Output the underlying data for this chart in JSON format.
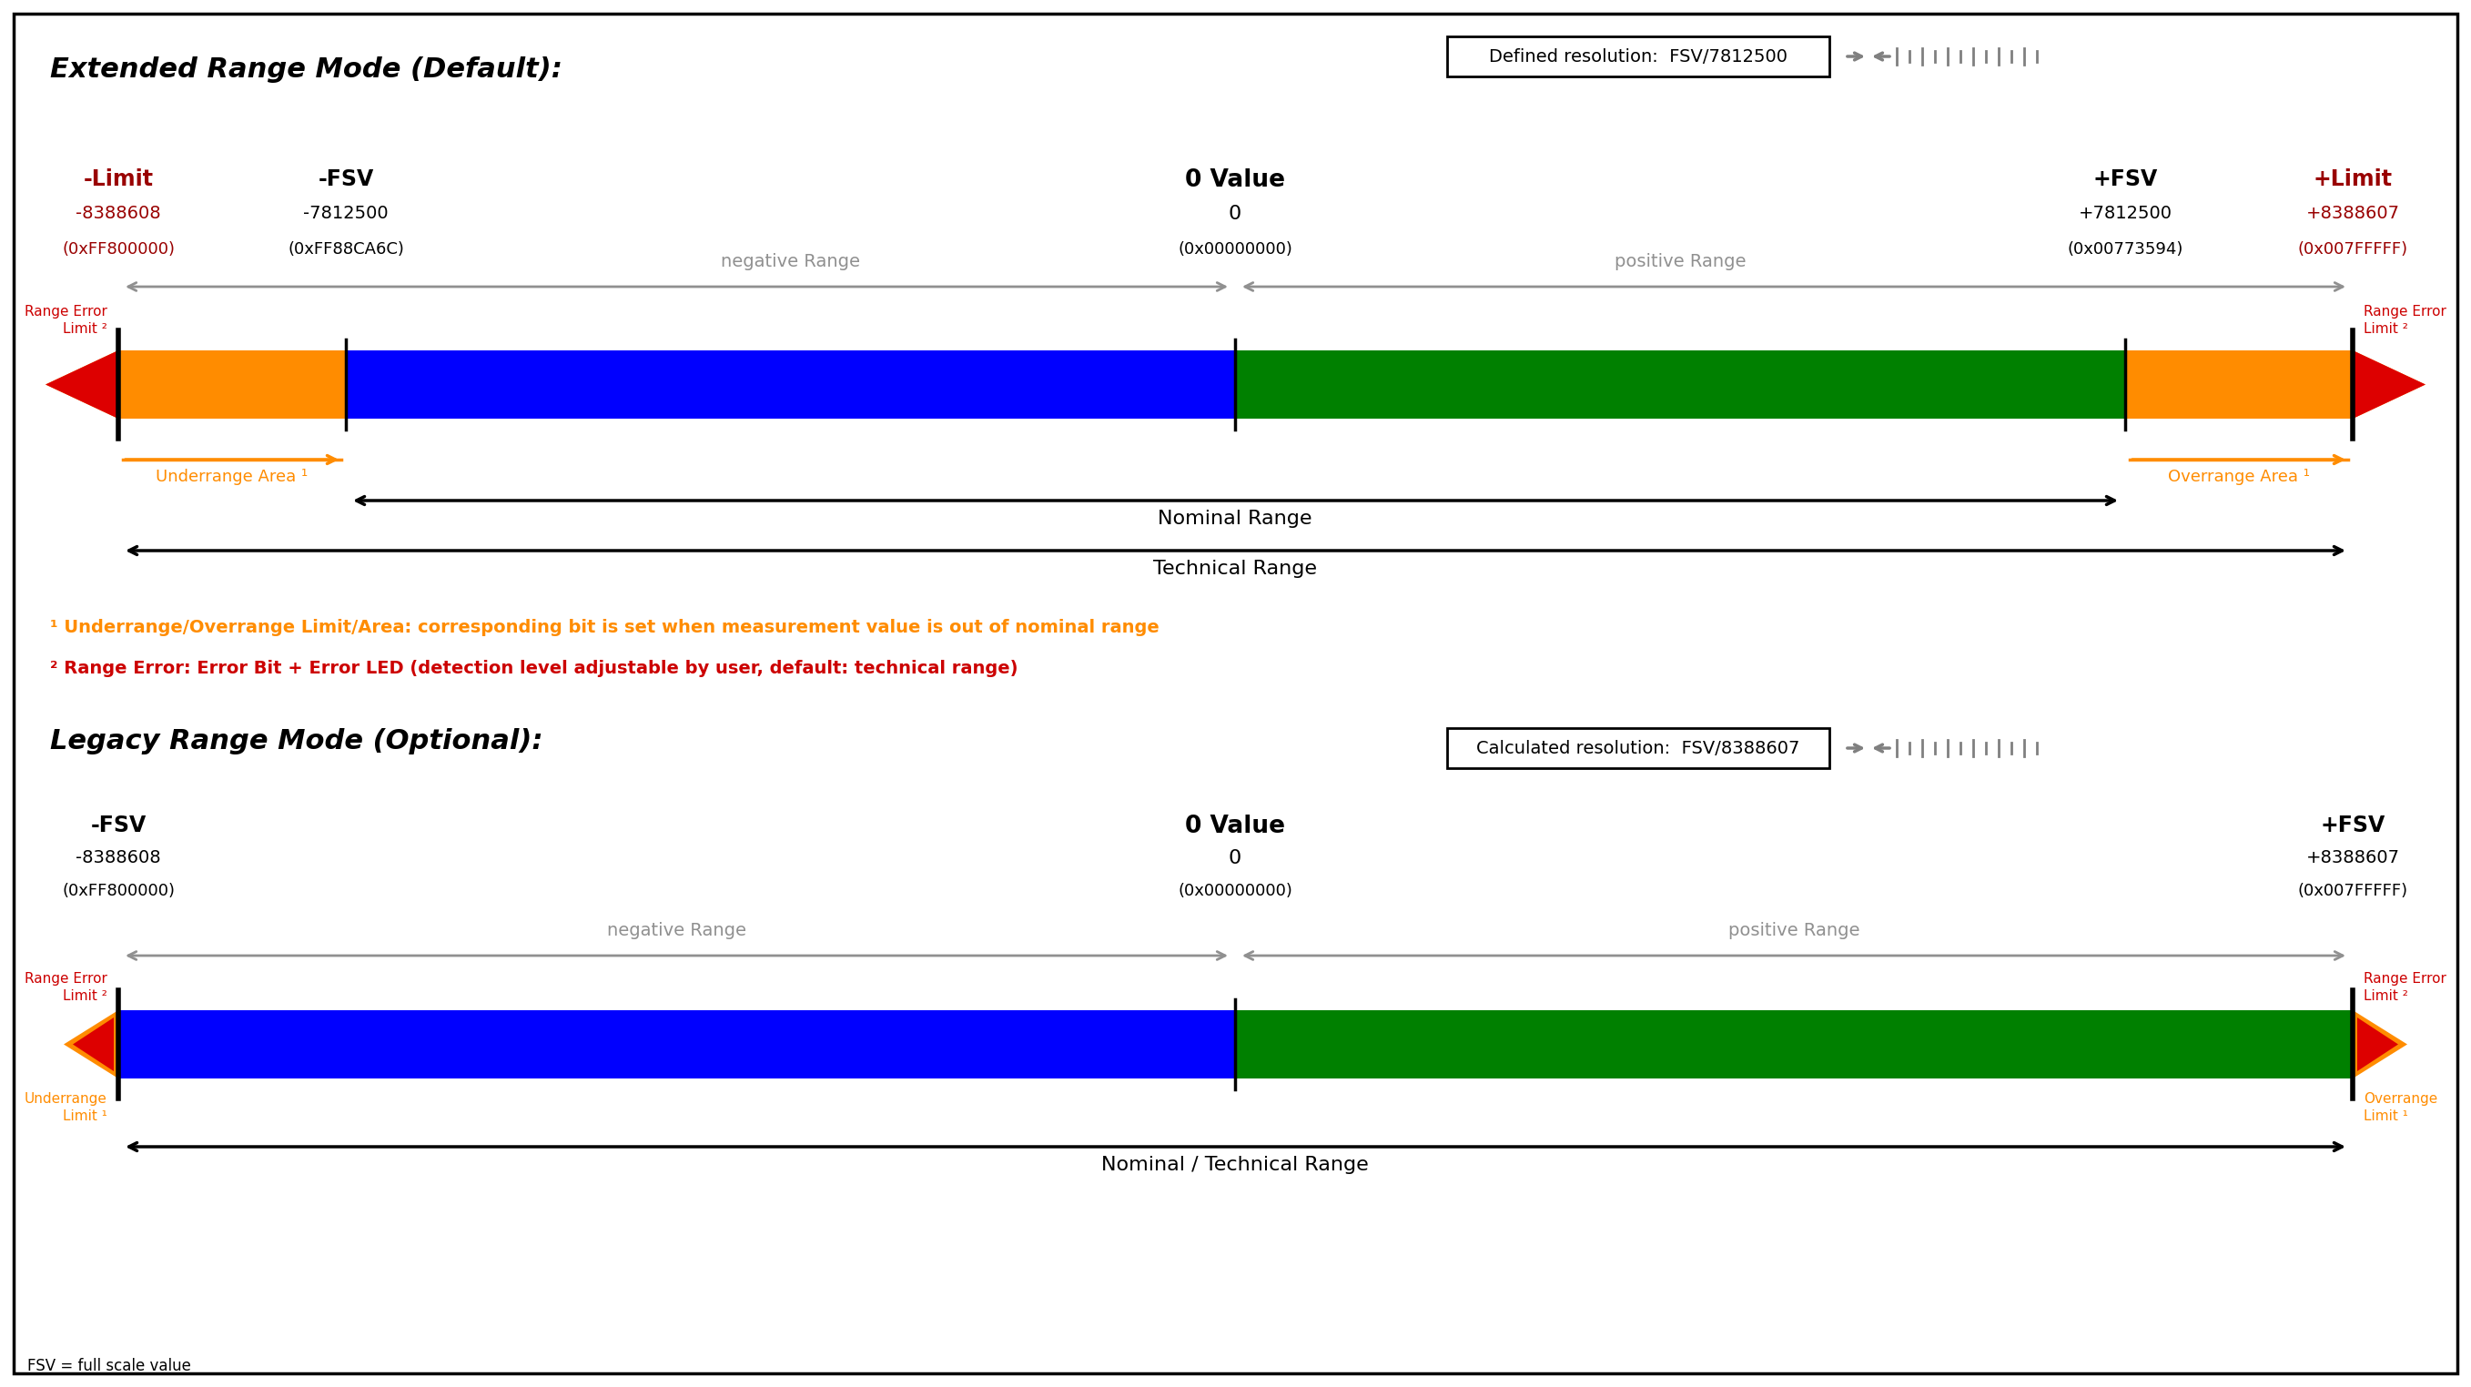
{
  "bg_color": "#ffffff",
  "title1": "Extended Range Mode (Default):",
  "title2": "Legacy Range Mode (Optional):",
  "resolution1": "Defined resolution:  FSV/7812500",
  "resolution2": "Calculated resolution:  FSV/8388607",
  "fsv_note": "FSV = full scale value",
  "note1": "¹ Underrange/Overrange Limit/Area: corresponding bit is set when measurement value is out of nominal range",
  "note2": "² Range Error: Error Bit + Error LED (detection level adjustable by user, default: technical range)",
  "ext": {
    "neg_limit_label": "-Limit",
    "neg_limit_val": "-8388608",
    "neg_limit_hex": "(0xFF800000)",
    "neg_fsv_label": "-FSV",
    "neg_fsv_val": "-7812500",
    "neg_fsv_hex": "(0xFF88CA6C)",
    "zero_label": "0 Value",
    "zero_val": "0",
    "zero_hex": "(0x00000000)",
    "pos_fsv_label": "+FSV",
    "pos_fsv_val": "+7812500",
    "pos_fsv_hex": "(0x00773594)",
    "pos_limit_label": "+Limit",
    "pos_limit_val": "+8388607",
    "pos_limit_hex": "(0x007FFFFF)",
    "neg_range_label": "negative Range",
    "pos_range_label": "positive Range",
    "nominal_range": "Nominal Range",
    "technical_range": "Technical Range",
    "underrange_area": "Underrange Area ¹",
    "overrange_area": "Overrange Area ¹",
    "range_error_limit": "Range Error\nLimit ²"
  },
  "leg": {
    "neg_fsv_label": "-FSV",
    "neg_fsv_val": "-8388608",
    "neg_fsv_hex": "(0xFF800000)",
    "zero_label": "0 Value",
    "zero_val": "0",
    "zero_hex": "(0x00000000)",
    "pos_fsv_label": "+FSV",
    "pos_fsv_val": "+8388607",
    "pos_fsv_hex": "(0x007FFFFF)",
    "neg_range_label": "negative Range",
    "pos_range_label": "positive Range",
    "nominal_range": "Nominal / Technical Range",
    "range_error_limit": "Range Error\nLimit ²",
    "underrange_limit": "Underrange\nLimit ¹",
    "overrange_limit": "Overrange\nLimit ¹"
  },
  "colors": {
    "orange": "#FF8C00",
    "blue": "#0000FF",
    "green": "#008000",
    "red": "#DD0000",
    "dark_red": "#990000",
    "gray": "#909090",
    "label_red": "#CC0000",
    "label_orange": "#FF8C00"
  }
}
